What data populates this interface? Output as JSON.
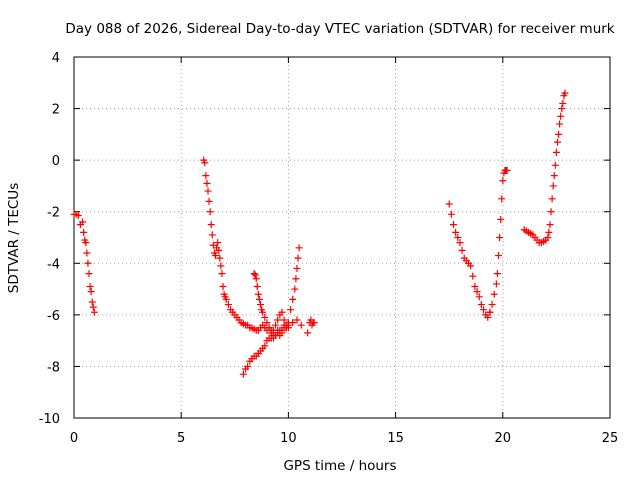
{
  "chart_data": {
    "type": "scatter",
    "title": "Day 088 of 2026, Sidereal Day-to-day VTEC variation (SDTVAR) for receiver murk",
    "xlabel": "GPS time / hours",
    "ylabel": "SDTVAR / TECUs",
    "xlim": [
      0,
      25
    ],
    "ylim": [
      -10,
      4
    ],
    "xticks": [
      "0",
      "5",
      "10",
      "15",
      "20",
      "25"
    ],
    "yticks": [
      "-10",
      "-8",
      "-6",
      "-4",
      "-2",
      "0",
      "2",
      "4"
    ],
    "grid": true,
    "marker": "plus",
    "color": "#ff0000",
    "series": [
      {
        "x": [
          0.0,
          0.1,
          0.2,
          0.3,
          0.4,
          0.45,
          0.5,
          0.55,
          0.6,
          0.65,
          0.7,
          0.75,
          0.8,
          0.85,
          0.9,
          0.95
        ],
        "y": [
          -2.1,
          -2.1,
          -2.15,
          -2.5,
          -2.4,
          -2.8,
          -3.1,
          -3.2,
          -3.6,
          -4.0,
          -4.4,
          -4.9,
          -5.1,
          -5.5,
          -5.7,
          -5.9
        ]
      },
      {
        "x": [
          6.05,
          6.1,
          6.15,
          6.2,
          6.25,
          6.3,
          6.35,
          6.4,
          6.45,
          6.5,
          6.55,
          6.6,
          6.65,
          6.7,
          6.75,
          6.8,
          6.85,
          6.9,
          6.95,
          7.0,
          7.05,
          7.1,
          7.2,
          7.3,
          7.4,
          7.5,
          7.6,
          7.7
        ],
        "y": [
          0.0,
          -0.1,
          -0.6,
          -0.9,
          -1.2,
          -1.6,
          -2.0,
          -2.5,
          -2.9,
          -3.3,
          -3.6,
          -3.7,
          -3.4,
          -3.2,
          -3.5,
          -3.8,
          -4.1,
          -4.4,
          -4.9,
          -5.2,
          -5.3,
          -5.4,
          -5.6,
          -5.8,
          -5.9,
          -6.0,
          -6.1,
          -6.2
        ]
      },
      {
        "x": [
          7.8,
          7.9,
          8.0,
          8.1,
          8.2,
          8.3,
          8.4,
          8.5,
          8.6,
          8.7,
          8.8,
          8.9,
          9.0,
          9.1,
          9.2,
          9.3,
          9.4
        ],
        "y": [
          -6.3,
          -6.35,
          -6.4,
          -6.4,
          -6.5,
          -6.5,
          -6.55,
          -6.6,
          -6.6,
          -6.5,
          -6.4,
          -6.5,
          -6.6,
          -6.5,
          -6.6,
          -6.7,
          -6.8
        ]
      },
      {
        "x": [
          8.4,
          8.45,
          8.5,
          8.55,
          8.6,
          8.65,
          8.7,
          8.75,
          8.8,
          8.9,
          9.0,
          9.1,
          9.2,
          9.3
        ],
        "y": [
          -4.4,
          -4.45,
          -4.6,
          -4.9,
          -5.2,
          -5.4,
          -5.6,
          -5.8,
          -5.9,
          -6.1,
          -6.3,
          -6.5,
          -6.7,
          -6.9
        ]
      },
      {
        "x": [
          7.9,
          8.0,
          8.1,
          8.2,
          8.3,
          8.4,
          8.5,
          8.6,
          8.7,
          8.8,
          8.9,
          9.0,
          9.1,
          9.2,
          9.3,
          9.4,
          9.5,
          9.6,
          9.7,
          9.8,
          9.9,
          10.0
        ],
        "y": [
          -8.3,
          -8.1,
          -8.0,
          -7.8,
          -7.7,
          -7.6,
          -7.6,
          -7.5,
          -7.4,
          -7.3,
          -7.2,
          -7.0,
          -6.9,
          -6.9,
          -6.8,
          -6.8,
          -6.7,
          -6.6,
          -6.6,
          -6.5,
          -6.5,
          -6.4
        ]
      },
      {
        "x": [
          9.3,
          9.4,
          9.5,
          9.6,
          9.7,
          9.8,
          9.9,
          10.0,
          10.1,
          10.2,
          10.3,
          10.35,
          10.4,
          10.45,
          10.5
        ],
        "y": [
          -6.6,
          -6.4,
          -6.2,
          -6.0,
          -5.9,
          -6.2,
          -6.4,
          -6.5,
          -5.8,
          -5.4,
          -5.0,
          -4.6,
          -4.2,
          -3.8,
          -3.4
        ]
      },
      {
        "x": [
          9.5,
          9.6,
          9.7,
          9.8,
          9.9,
          10.0,
          10.2,
          10.4,
          10.6
        ],
        "y": [
          -6.6,
          -6.8,
          -6.7,
          -6.4,
          -6.5,
          -6.3,
          -6.3,
          -6.2,
          -6.4
        ]
      },
      {
        "x": [
          10.9,
          11.0,
          11.05,
          11.1,
          11.15,
          11.2
        ],
        "y": [
          -6.7,
          -6.3,
          -6.2,
          -6.4,
          -6.3,
          -6.3
        ]
      },
      {
        "x": [
          17.5,
          17.6,
          17.7,
          17.8,
          17.9,
          18.0,
          18.1,
          18.2,
          18.3,
          18.4,
          18.5,
          18.6,
          18.7,
          18.8,
          18.9,
          19.0,
          19.1,
          19.2,
          19.3,
          19.4
        ],
        "y": [
          -1.7,
          -2.1,
          -2.5,
          -2.8,
          -3.0,
          -3.2,
          -3.5,
          -3.8,
          -3.9,
          -4.0,
          -4.1,
          -4.5,
          -4.9,
          -5.1,
          -5.3,
          -5.6,
          -5.8,
          -6.0,
          -6.1,
          -5.9
        ]
      },
      {
        "x": [
          19.4,
          19.5,
          19.6,
          19.7,
          19.75,
          19.8,
          19.85,
          19.9,
          19.95,
          20.0,
          20.05,
          20.1,
          20.15,
          20.2
        ],
        "y": [
          -5.9,
          -5.6,
          -5.2,
          -4.8,
          -4.4,
          -3.7,
          -3.0,
          -2.3,
          -1.5,
          -0.8,
          -0.5,
          -0.4,
          -0.4,
          -0.4
        ]
      },
      {
        "x": [
          21.0,
          21.1,
          21.2,
          21.3,
          21.4,
          21.5,
          21.6,
          21.7,
          21.8,
          21.9,
          22.0,
          22.1,
          22.15
        ],
        "y": [
          -2.7,
          -2.75,
          -2.8,
          -2.85,
          -2.9,
          -3.0,
          -3.1,
          -3.2,
          -3.2,
          -3.15,
          -3.1,
          -3.0,
          -2.8
        ]
      },
      {
        "x": [
          22.2,
          22.25,
          22.3,
          22.35,
          22.4,
          22.45,
          22.5,
          22.55,
          22.6,
          22.65,
          22.7,
          22.75,
          22.8,
          22.85,
          22.9
        ],
        "y": [
          -2.5,
          -2.0,
          -1.5,
          -1.0,
          -0.6,
          -0.2,
          0.3,
          0.7,
          1.0,
          1.4,
          1.7,
          2.0,
          2.2,
          2.5,
          2.6
        ]
      }
    ]
  }
}
